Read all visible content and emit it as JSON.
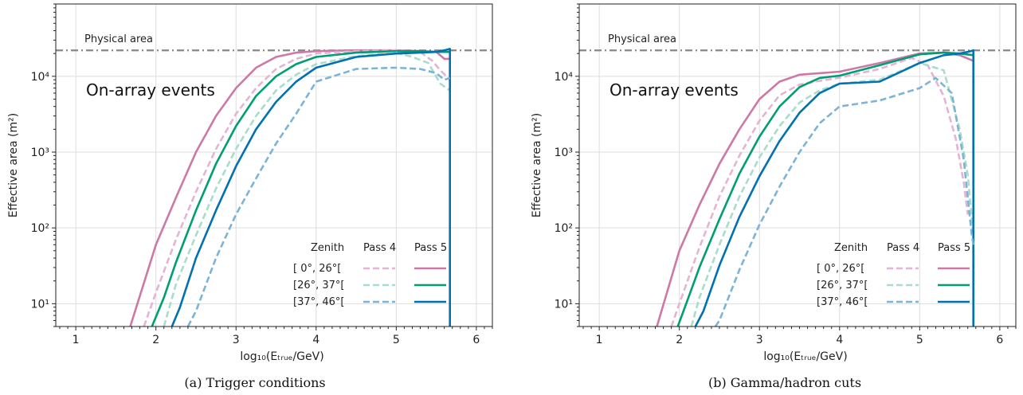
{
  "chart_data": [
    {
      "type": "line",
      "caption": "(a) Trigger conditions",
      "xlabel": "log₁₀(Eₜᵣᵤₑ/GeV)",
      "ylabel": "Effective area (m²)",
      "xlim": [
        0.75,
        6.2
      ],
      "ylim": [
        5,
        90000
      ],
      "yscale": "log",
      "grid": true,
      "x_ticks": [
        "1",
        "2",
        "3",
        "4",
        "5",
        "6"
      ],
      "y_ticks": [
        "10¹",
        "10²",
        "10³",
        "10⁴"
      ],
      "annotations": [
        "Physical area",
        "On-array events"
      ],
      "physical_area": 22000,
      "legend": {
        "header_zenith": "Zenith",
        "header_pass4": "Pass 4",
        "header_pass5": "Pass 5",
        "rows": [
          "[  0°, 26°[",
          "[26°, 37°[",
          "[37°, 46°["
        ],
        "placement": "lower right"
      },
      "series": [
        {
          "pass": "Pass 5",
          "zenith": "[  0°, 26°[",
          "color": "#cc79a7",
          "dash": false,
          "x": [
            1.68,
            2.0,
            2.25,
            2.5,
            2.75,
            3.0,
            3.25,
            3.5,
            3.75,
            4.0,
            4.5,
            5.0,
            5.3,
            5.5,
            5.6,
            5.67
          ],
          "y": [
            5,
            60,
            250,
            1000,
            3000,
            7000,
            13000,
            18000,
            20500,
            21500,
            22000,
            22000,
            21500,
            21000,
            17000,
            17000
          ]
        },
        {
          "pass": "Pass 4",
          "zenith": "[  0°, 26°[",
          "color": "#e5b3d3",
          "dash": true,
          "x": [
            1.85,
            2.0,
            2.25,
            2.5,
            2.75,
            3.0,
            3.25,
            3.5,
            3.75,
            4.0,
            4.5,
            5.0,
            5.3,
            5.45,
            5.55,
            5.67
          ],
          "y": [
            5,
            14,
            70,
            300,
            1100,
            3200,
            7000,
            12500,
            17000,
            20000,
            21500,
            22000,
            21000,
            16000,
            12000,
            9000
          ]
        },
        {
          "pass": "Pass 5",
          "zenith": "[26°, 37°[",
          "color": "#009e73",
          "dash": false,
          "x": [
            1.95,
            2.1,
            2.25,
            2.5,
            2.75,
            3.0,
            3.25,
            3.5,
            3.75,
            4.0,
            4.5,
            5.0,
            5.3,
            5.5,
            5.67
          ],
          "y": [
            5,
            12,
            35,
            170,
            700,
            2200,
            5500,
            10000,
            14500,
            18000,
            20500,
            21500,
            21500,
            21000,
            21000
          ]
        },
        {
          "pass": "Pass 4",
          "zenith": "[26°, 37°[",
          "color": "#a8dccb",
          "dash": true,
          "x": [
            2.1,
            2.25,
            2.5,
            2.75,
            3.0,
            3.25,
            3.5,
            3.75,
            4.0,
            4.5,
            5.0,
            5.2,
            5.4,
            5.55,
            5.67
          ],
          "y": [
            5,
            18,
            80,
            330,
            1100,
            3000,
            6500,
            10500,
            14500,
            18500,
            20500,
            18000,
            15000,
            8000,
            6500
          ]
        },
        {
          "pass": "Pass 5",
          "zenith": "[37°, 46°[",
          "color": "#0072b2",
          "dash": false,
          "x": [
            2.2,
            2.3,
            2.5,
            2.75,
            3.0,
            3.25,
            3.5,
            3.75,
            4.0,
            4.5,
            5.0,
            5.3,
            5.5,
            5.6,
            5.67,
            5.67
          ],
          "y": [
            5,
            9,
            40,
            170,
            650,
            2000,
            4600,
            8500,
            13000,
            18000,
            20000,
            20500,
            21000,
            22000,
            23000,
            5
          ]
        },
        {
          "pass": "Pass 4",
          "zenith": "[37°, 46°[",
          "color": "#7bb4d6",
          "dash": true,
          "x": [
            2.4,
            2.5,
            2.75,
            3.0,
            3.25,
            3.5,
            3.75,
            4.0,
            4.5,
            5.0,
            5.3,
            5.5,
            5.6,
            5.67
          ],
          "y": [
            5,
            8,
            40,
            150,
            450,
            1300,
            3200,
            8500,
            12500,
            13000,
            12500,
            11000,
            9000,
            9500
          ]
        }
      ]
    },
    {
      "type": "line",
      "caption": "(b) Gamma/hadron cuts",
      "xlabel": "log₁₀(Eₜᵣᵤₑ/GeV)",
      "ylabel": "Effective area (m²)",
      "xlim": [
        0.75,
        6.2
      ],
      "ylim": [
        5,
        90000
      ],
      "yscale": "log",
      "grid": true,
      "x_ticks": [
        "1",
        "2",
        "3",
        "4",
        "5",
        "6"
      ],
      "y_ticks": [
        "10¹",
        "10²",
        "10³",
        "10⁴"
      ],
      "annotations": [
        "Physical area",
        "On-array events"
      ],
      "physical_area": 22000,
      "legend": {
        "header_zenith": "Zenith",
        "header_pass4": "Pass 4",
        "header_pass5": "Pass 5",
        "rows": [
          "[  0°, 26°[",
          "[26°, 37°[",
          "[37°, 46°["
        ],
        "placement": "lower right"
      },
      "series": [
        {
          "pass": "Pass 5",
          "zenith": "[  0°, 26°[",
          "color": "#cc79a7",
          "dash": false,
          "x": [
            1.72,
            2.0,
            2.25,
            2.5,
            2.75,
            3.0,
            3.25,
            3.5,
            3.75,
            4.0,
            4.5,
            5.0,
            5.3,
            5.5,
            5.67
          ],
          "y": [
            5,
            50,
            200,
            700,
            2000,
            5000,
            8500,
            10500,
            11000,
            11500,
            15000,
            20000,
            20500,
            19000,
            16000
          ]
        },
        {
          "pass": "Pass 4",
          "zenith": "[  0°, 26°[",
          "color": "#e5b3d3",
          "dash": true,
          "x": [
            1.9,
            2.0,
            2.25,
            2.5,
            2.75,
            3.0,
            3.25,
            3.5,
            3.75,
            4.0,
            4.5,
            4.9,
            5.1,
            5.3,
            5.45,
            5.55,
            5.6
          ],
          "y": [
            5,
            10,
            55,
            260,
            900,
            2600,
            5600,
            7800,
            8700,
            9600,
            12500,
            17500,
            14000,
            5500,
            1500,
            400,
            150
          ]
        },
        {
          "pass": "Pass 5",
          "zenith": "[26°, 37°[",
          "color": "#009e73",
          "dash": false,
          "x": [
            1.98,
            2.1,
            2.25,
            2.5,
            2.75,
            3.0,
            3.25,
            3.5,
            3.75,
            4.0,
            4.5,
            5.0,
            5.3,
            5.5,
            5.67
          ],
          "y": [
            5,
            11,
            30,
            130,
            520,
            1600,
            4000,
            7200,
            9500,
            10200,
            14000,
            19500,
            20500,
            20000,
            19000
          ]
        },
        {
          "pass": "Pass 4",
          "zenith": "[26°, 37°[",
          "color": "#a8dccb",
          "dash": true,
          "x": [
            2.15,
            2.25,
            2.5,
            2.75,
            3.0,
            3.25,
            3.5,
            3.75,
            4.0,
            4.5,
            5.0,
            5.3,
            5.5,
            5.6,
            5.67
          ],
          "y": [
            5,
            12,
            60,
            260,
            850,
            2200,
            4500,
            6500,
            8000,
            9000,
            15000,
            12000,
            2000,
            500,
            80
          ]
        },
        {
          "pass": "Pass 5",
          "zenith": "[37°, 46°[",
          "color": "#0072b2",
          "dash": false,
          "x": [
            2.2,
            2.3,
            2.5,
            2.75,
            3.0,
            3.25,
            3.5,
            3.75,
            4.0,
            4.5,
            5.0,
            5.3,
            5.5,
            5.6,
            5.67,
            5.67
          ],
          "y": [
            5,
            8,
            32,
            140,
            480,
            1400,
            3300,
            6000,
            8000,
            8500,
            15000,
            19000,
            20000,
            21000,
            22000,
            5
          ]
        },
        {
          "pass": "Pass 4",
          "zenith": "[37°, 46°[",
          "color": "#7bb4d6",
          "dash": true,
          "x": [
            2.45,
            2.5,
            2.75,
            3.0,
            3.25,
            3.5,
            3.75,
            4.0,
            4.5,
            5.0,
            5.2,
            5.4,
            5.55,
            5.65,
            5.67
          ],
          "y": [
            5,
            6,
            28,
            110,
            350,
            1000,
            2400,
            4000,
            4800,
            7000,
            9500,
            6000,
            800,
            80,
            60
          ]
        }
      ]
    }
  ]
}
